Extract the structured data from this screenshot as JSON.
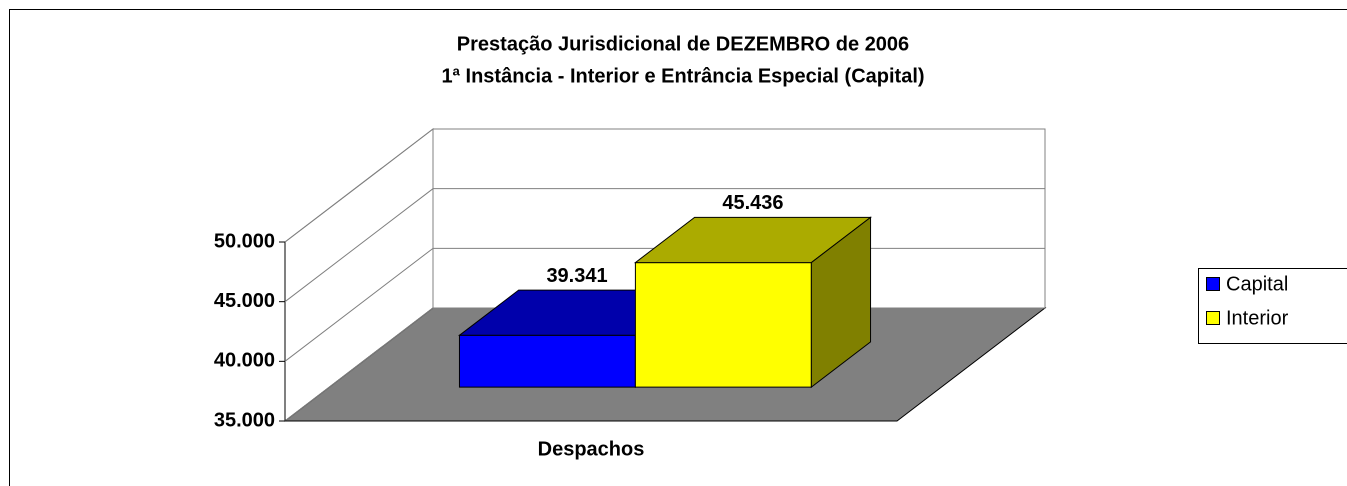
{
  "chart_data": {
    "type": "bar3d",
    "title": "Prestação Jurisdicional de DEZEMBRO de 2006",
    "subtitle": "1ª Instância - Interior e Entrância Especial (Capital)",
    "categories": [
      "Despachos"
    ],
    "series": [
      {
        "name": "Capital",
        "color": "#0000ff",
        "values": [
          39341
        ],
        "value_labels": [
          "39.341"
        ]
      },
      {
        "name": "Interior",
        "color": "#ffff00",
        "values": [
          45436
        ],
        "value_labels": [
          "45.436"
        ]
      }
    ],
    "ylim": [
      35000,
      50000
    ],
    "yticks": [
      {
        "value": 35000,
        "label": "35.000"
      },
      {
        "value": 40000,
        "label": "40.000"
      },
      {
        "value": 45000,
        "label": "45.000"
      },
      {
        "value": 50000,
        "label": "50.000"
      }
    ],
    "grid": true,
    "legend": "right"
  }
}
